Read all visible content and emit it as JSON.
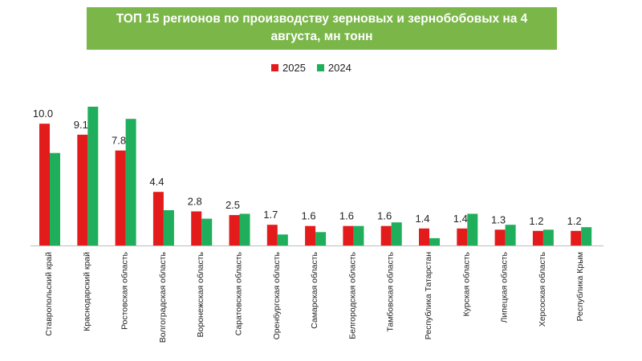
{
  "chart_data": {
    "type": "bar",
    "title": "ТОП 15 регионов по производству зерновых и зернобобовых на 4 августа, мн тонн",
    "xlabel": "",
    "ylabel": "",
    "ylim": [
      0,
      11.4
    ],
    "grid": false,
    "legend_position": "top",
    "categories": [
      "Ставропольский край",
      "Краснодарский край",
      "Ростовская область",
      "Волгоградская область",
      "Воронежская область",
      "Саратовская область",
      "Оренбургская область",
      "Самарская область",
      "Белгородская область",
      "Тамбовская область",
      "Республика Татарстан",
      "Курская область",
      "Липецкая область",
      "Херсоская область",
      "Республика Крым"
    ],
    "series": [
      {
        "name": "2025",
        "color": "#e31b1b",
        "values": [
          10.0,
          9.1,
          7.8,
          4.4,
          2.8,
          2.5,
          1.7,
          1.6,
          1.6,
          1.6,
          1.4,
          1.4,
          1.3,
          1.2,
          1.2
        ],
        "labels": [
          "10.0",
          "9.1",
          "7.8",
          "4.4",
          "2.8",
          "2.5",
          "1.7",
          "1.6",
          "1.6",
          "1.6",
          "1.4",
          "1.4",
          "1.3",
          "1.2",
          "1.2"
        ]
      },
      {
        "name": "2024",
        "color": "#1fae5b",
        "values": [
          7.6,
          11.4,
          10.4,
          2.9,
          2.2,
          2.6,
          0.9,
          1.1,
          1.6,
          1.9,
          0.6,
          2.6,
          1.7,
          1.3,
          1.5
        ]
      }
    ]
  }
}
